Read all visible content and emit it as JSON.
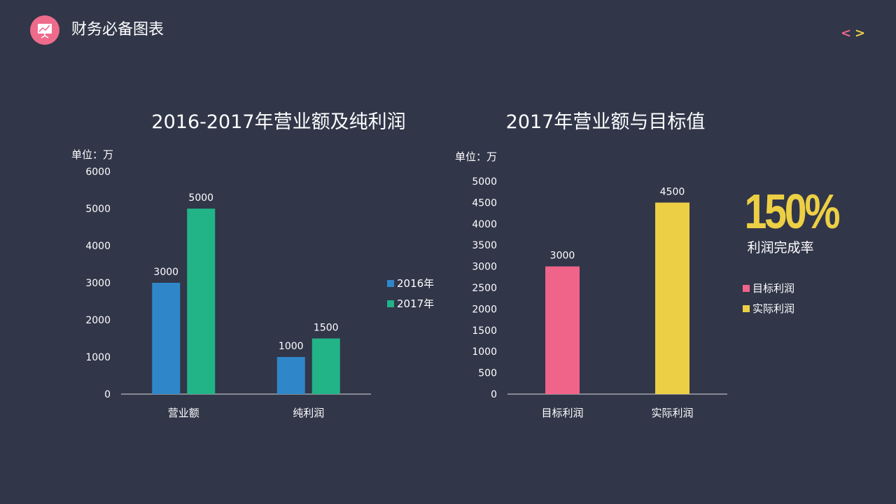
{
  "header": {
    "title": "财务必备图表",
    "logo_color": "#ee6b8b",
    "logo_icon": "presentation-chart-icon"
  },
  "nav": {
    "prev_label": "<",
    "next_label": ">",
    "prev_color": "#ee6b8b",
    "next_color": "#efcf45"
  },
  "chart_data": [
    {
      "type": "bar",
      "title": "2016-2017年营业额及纯利润",
      "unit_label": "单位：万",
      "categories": [
        "营业额",
        "纯利润"
      ],
      "series": [
        {
          "name": "2016年",
          "values": [
            3000,
            1000
          ],
          "color": "#2f87c9"
        },
        {
          "name": "2017年",
          "values": [
            5000,
            1500
          ],
          "color": "#22b387"
        }
      ],
      "ylim": [
        0,
        6000
      ],
      "yticks": [
        0,
        1000,
        2000,
        3000,
        4000,
        5000,
        6000
      ],
      "grid": false,
      "legend": "right"
    },
    {
      "type": "bar",
      "title": "2017年营业额与目标值",
      "unit_label": "单位：万",
      "categories": [
        "目标利润",
        "实际利润"
      ],
      "values": [
        3000,
        4500
      ],
      "colors": [
        "#ef6488",
        "#eccf44"
      ],
      "ylim": [
        0,
        5000
      ],
      "yticks": [
        0,
        500,
        1000,
        1500,
        2000,
        2500,
        3000,
        3500,
        4000,
        4500,
        5000
      ],
      "grid": false,
      "legend": "right",
      "legend_entries": [
        {
          "label": "目标利润",
          "color": "#ef6488"
        },
        {
          "label": "实际利润",
          "color": "#eccf44"
        }
      ]
    }
  ],
  "kpi": {
    "value": "150%",
    "label": "利润完成率",
    "color": "#eccf44"
  }
}
